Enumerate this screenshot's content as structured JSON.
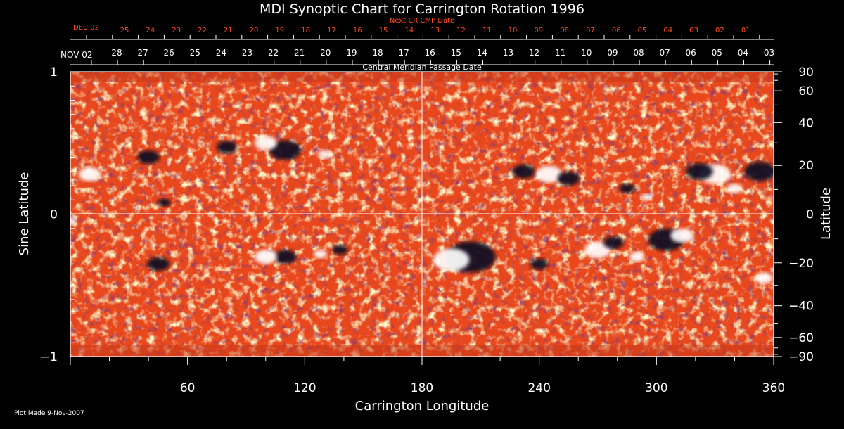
{
  "chart_data": {
    "type": "heatmap",
    "title": "MDI Synoptic Chart for Carrington Rotation 1996",
    "xlabel": "Carrington Longitude",
    "ylabel_left": "Sine Latitude",
    "ylabel_right": "Latitude",
    "xlim": [
      0,
      360
    ],
    "ylim": [
      -1,
      1
    ],
    "x_ticks": [
      60,
      120,
      180,
      240,
      300,
      360
    ],
    "y_ticks_left": [
      {
        "value": 1,
        "label": "1"
      },
      {
        "value": 0,
        "label": "0"
      },
      {
        "value": -1,
        "label": "−1"
      }
    ],
    "y_ticks_right": [
      90,
      60,
      40,
      20,
      0,
      -20,
      -40,
      -60,
      -90
    ],
    "y_ticks_right_labels": [
      "90",
      "60",
      "40",
      "20",
      "0",
      "−20",
      "−40",
      "−60",
      "−90"
    ],
    "grid_lines": {
      "longitude": 180,
      "sine_latitude": 0
    },
    "cmp_axis": {
      "title": "Central Meridian Passage Date",
      "start_label": "NOV 02",
      "days": [
        "28",
        "27",
        "26",
        "25",
        "24",
        "23",
        "22",
        "21",
        "20",
        "19",
        "18",
        "17",
        "16",
        "15",
        "14",
        "13",
        "12",
        "11",
        "10",
        "09",
        "08",
        "07",
        "06",
        "05",
        "04",
        "03"
      ]
    },
    "next_cr_axis": {
      "title": "Next CR CMP Date",
      "start_label": "DEC 02",
      "days": [
        "25",
        "24",
        "23",
        "22",
        "21",
        "20",
        "19",
        "18",
        "17",
        "16",
        "15",
        "14",
        "13",
        "12",
        "11",
        "10",
        "09",
        "08",
        "07",
        "06",
        "05",
        "04",
        "03",
        "02",
        "01"
      ]
    },
    "active_regions": [
      {
        "lon": 110,
        "sinlat": 0.45,
        "r": 14,
        "polarity": "negative"
      },
      {
        "lon": 100,
        "sinlat": 0.5,
        "r": 10,
        "polarity": "positive"
      },
      {
        "lon": 130,
        "sinlat": 0.42,
        "r": 6,
        "polarity": "positive"
      },
      {
        "lon": 80,
        "sinlat": 0.47,
        "r": 9,
        "polarity": "negative"
      },
      {
        "lon": 10,
        "sinlat": 0.28,
        "r": 10,
        "polarity": "positive"
      },
      {
        "lon": 40,
        "sinlat": 0.4,
        "r": 10,
        "polarity": "negative"
      },
      {
        "lon": 48,
        "sinlat": 0.08,
        "r": 6,
        "polarity": "negative"
      },
      {
        "lon": 110,
        "sinlat": -0.3,
        "r": 10,
        "polarity": "negative"
      },
      {
        "lon": 100,
        "sinlat": -0.3,
        "r": 10,
        "polarity": "positive"
      },
      {
        "lon": 138,
        "sinlat": -0.25,
        "r": 7,
        "polarity": "negative"
      },
      {
        "lon": 128,
        "sinlat": -0.28,
        "r": 6,
        "polarity": "positive"
      },
      {
        "lon": 45,
        "sinlat": -0.35,
        "r": 10,
        "polarity": "negative"
      },
      {
        "lon": 205,
        "sinlat": -0.3,
        "r": 22,
        "polarity": "negative"
      },
      {
        "lon": 195,
        "sinlat": -0.32,
        "r": 16,
        "polarity": "positive"
      },
      {
        "lon": 240,
        "sinlat": -0.35,
        "r": 8,
        "polarity": "negative"
      },
      {
        "lon": 270,
        "sinlat": -0.25,
        "r": 12,
        "polarity": "positive"
      },
      {
        "lon": 278,
        "sinlat": -0.2,
        "r": 9,
        "polarity": "negative"
      },
      {
        "lon": 290,
        "sinlat": -0.3,
        "r": 7,
        "polarity": "positive"
      },
      {
        "lon": 305,
        "sinlat": -0.18,
        "r": 16,
        "polarity": "negative"
      },
      {
        "lon": 313,
        "sinlat": -0.15,
        "r": 10,
        "polarity": "positive"
      },
      {
        "lon": 330,
        "sinlat": 0.28,
        "r": 14,
        "polarity": "positive"
      },
      {
        "lon": 322,
        "sinlat": 0.3,
        "r": 12,
        "polarity": "negative"
      },
      {
        "lon": 353,
        "sinlat": 0.3,
        "r": 14,
        "polarity": "negative"
      },
      {
        "lon": 340,
        "sinlat": 0.18,
        "r": 7,
        "polarity": "positive"
      },
      {
        "lon": 285,
        "sinlat": 0.18,
        "r": 7,
        "polarity": "negative"
      },
      {
        "lon": 295,
        "sinlat": 0.12,
        "r": 5,
        "polarity": "positive"
      },
      {
        "lon": 245,
        "sinlat": 0.28,
        "r": 12,
        "polarity": "positive"
      },
      {
        "lon": 232,
        "sinlat": 0.3,
        "r": 10,
        "polarity": "negative"
      },
      {
        "lon": 255,
        "sinlat": 0.25,
        "r": 10,
        "polarity": "negative"
      },
      {
        "lon": 355,
        "sinlat": -0.45,
        "r": 8,
        "polarity": "positive"
      },
      {
        "lon": 0,
        "sinlat": -0.05,
        "r": 5,
        "polarity": "positive"
      }
    ]
  },
  "footer": {
    "plot_made": "Plot Made  9-Nov-2007"
  },
  "colors": {
    "background": "#000000",
    "field_base": "#e8481c",
    "positive": "#ffffff",
    "negative": "#0d0820",
    "grid": "#ffffff",
    "secondary_axis": "#ff4a1a"
  }
}
